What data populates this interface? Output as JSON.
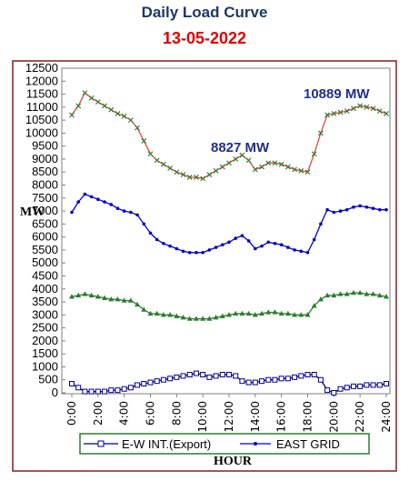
{
  "title": "Daily Load Curve",
  "date": "13-05-2022",
  "colors": {
    "frame": "#8b1a1a",
    "title": "#1f3864",
    "date": "#e00000",
    "annotation": "#1f2f8f",
    "legend_border": "#2e7d32"
  },
  "chart_data": {
    "type": "line",
    "ylabel": "MW",
    "xlabel": "HOUR",
    "ylim": [
      0,
      12500
    ],
    "ystep": 500,
    "xlim": [
      0,
      24
    ],
    "x_ticks": [
      "0:00",
      "2:00",
      "4:00",
      "6:00",
      "8:00",
      "10:00",
      "12:00",
      "14:00",
      "16:00",
      "18:00",
      "20:00",
      "22:00",
      "24:00"
    ],
    "grid": false,
    "legend_position": "bottom",
    "annotations": [
      {
        "text": "8827 MW",
        "x": 13.5,
        "y": 9150
      },
      {
        "text": "10889 MW",
        "x": 22.5,
        "y": 11050
      }
    ],
    "x": [
      0,
      0.5,
      1,
      1.5,
      2,
      2.5,
      3,
      3.5,
      4,
      4.5,
      5,
      5.5,
      6,
      6.5,
      7,
      7.5,
      8,
      8.5,
      9,
      9.5,
      10,
      10.5,
      11,
      11.5,
      12,
      12.5,
      13,
      13.5,
      14,
      14.5,
      15,
      15.5,
      16,
      16.5,
      17,
      17.5,
      18,
      18.5,
      19,
      19.5,
      20,
      20.5,
      21,
      21.5,
      22,
      22.5,
      23,
      23.5,
      24
    ],
    "series": [
      {
        "color": "#e8453c",
        "marker": "x",
        "marker_color": "#2e7d32",
        "values": [
          10700,
          11050,
          11550,
          11350,
          11200,
          11050,
          10900,
          10750,
          10650,
          10500,
          10200,
          9700,
          9200,
          8950,
          8800,
          8650,
          8500,
          8400,
          8300,
          8300,
          8250,
          8400,
          8550,
          8700,
          8850,
          9000,
          9150,
          8950,
          8600,
          8700,
          8850,
          8850,
          8800,
          8700,
          8600,
          8550,
          8500,
          9200,
          10000,
          10700,
          10750,
          10800,
          10850,
          10950,
          11050,
          11000,
          10950,
          10850,
          10750
        ]
      },
      {
        "name": "EAST GRID",
        "color": "#0000cc",
        "marker": "dot",
        "values": [
          6950,
          7350,
          7650,
          7550,
          7450,
          7350,
          7250,
          7100,
          7000,
          6950,
          6850,
          6500,
          6150,
          5900,
          5750,
          5650,
          5550,
          5450,
          5400,
          5400,
          5400,
          5500,
          5600,
          5700,
          5800,
          5950,
          6050,
          5850,
          5550,
          5650,
          5800,
          5750,
          5700,
          5600,
          5500,
          5450,
          5400,
          5900,
          6500,
          7050,
          6950,
          7000,
          7050,
          7150,
          7200,
          7150,
          7100,
          7050,
          7050
        ]
      },
      {
        "color": "#2e7d32",
        "marker": "triangle",
        "values": [
          3700,
          3750,
          3800,
          3750,
          3700,
          3650,
          3600,
          3600,
          3550,
          3550,
          3400,
          3200,
          3050,
          3050,
          3000,
          3000,
          2950,
          2900,
          2850,
          2850,
          2850,
          2850,
          2900,
          2950,
          3000,
          3050,
          3050,
          3050,
          3000,
          3050,
          3100,
          3100,
          3050,
          3050,
          3000,
          3000,
          3000,
          3350,
          3600,
          3750,
          3750,
          3800,
          3800,
          3850,
          3850,
          3800,
          3800,
          3750,
          3700
        ]
      },
      {
        "name": "E-W INT.(Export)",
        "color": "#00008b",
        "marker": "square",
        "values": [
          350,
          200,
          50,
          50,
          50,
          50,
          100,
          100,
          150,
          200,
          300,
          350,
          400,
          450,
          500,
          550,
          600,
          650,
          700,
          750,
          700,
          600,
          650,
          700,
          700,
          650,
          450,
          400,
          400,
          450,
          500,
          500,
          550,
          550,
          600,
          650,
          700,
          700,
          500,
          100,
          0,
          150,
          200,
          250,
          250,
          300,
          300,
          300,
          350
        ]
      }
    ]
  }
}
